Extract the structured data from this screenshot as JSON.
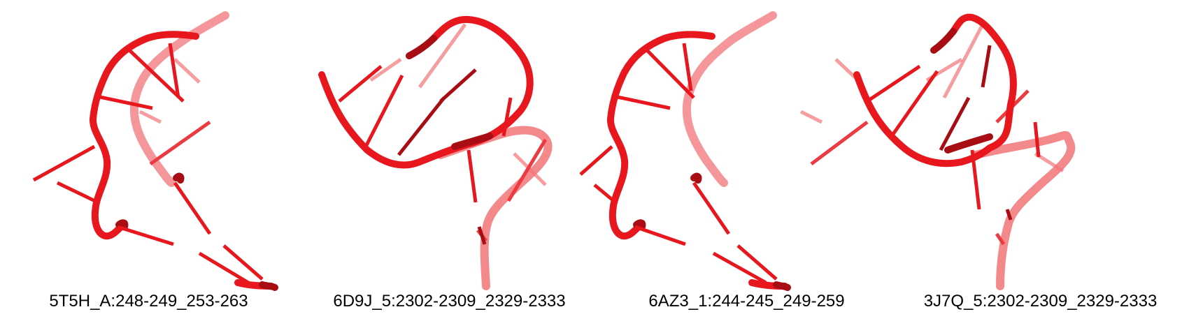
{
  "colors": {
    "backbone": "#e8171e",
    "backbone_dark": "#a70d12",
    "backbone_faded": "#f06a6e",
    "background": "#ffffff",
    "caption_text": "#000000"
  },
  "panels": [
    {
      "label": "5T5H_A:248-249_253-263"
    },
    {
      "label": "6D9J_5:2302-2309_2329-2333"
    },
    {
      "label": "6AZ3_1:244-245_249-259"
    },
    {
      "label": "3J7Q_5:2302-2309_2329-2333"
    }
  ]
}
